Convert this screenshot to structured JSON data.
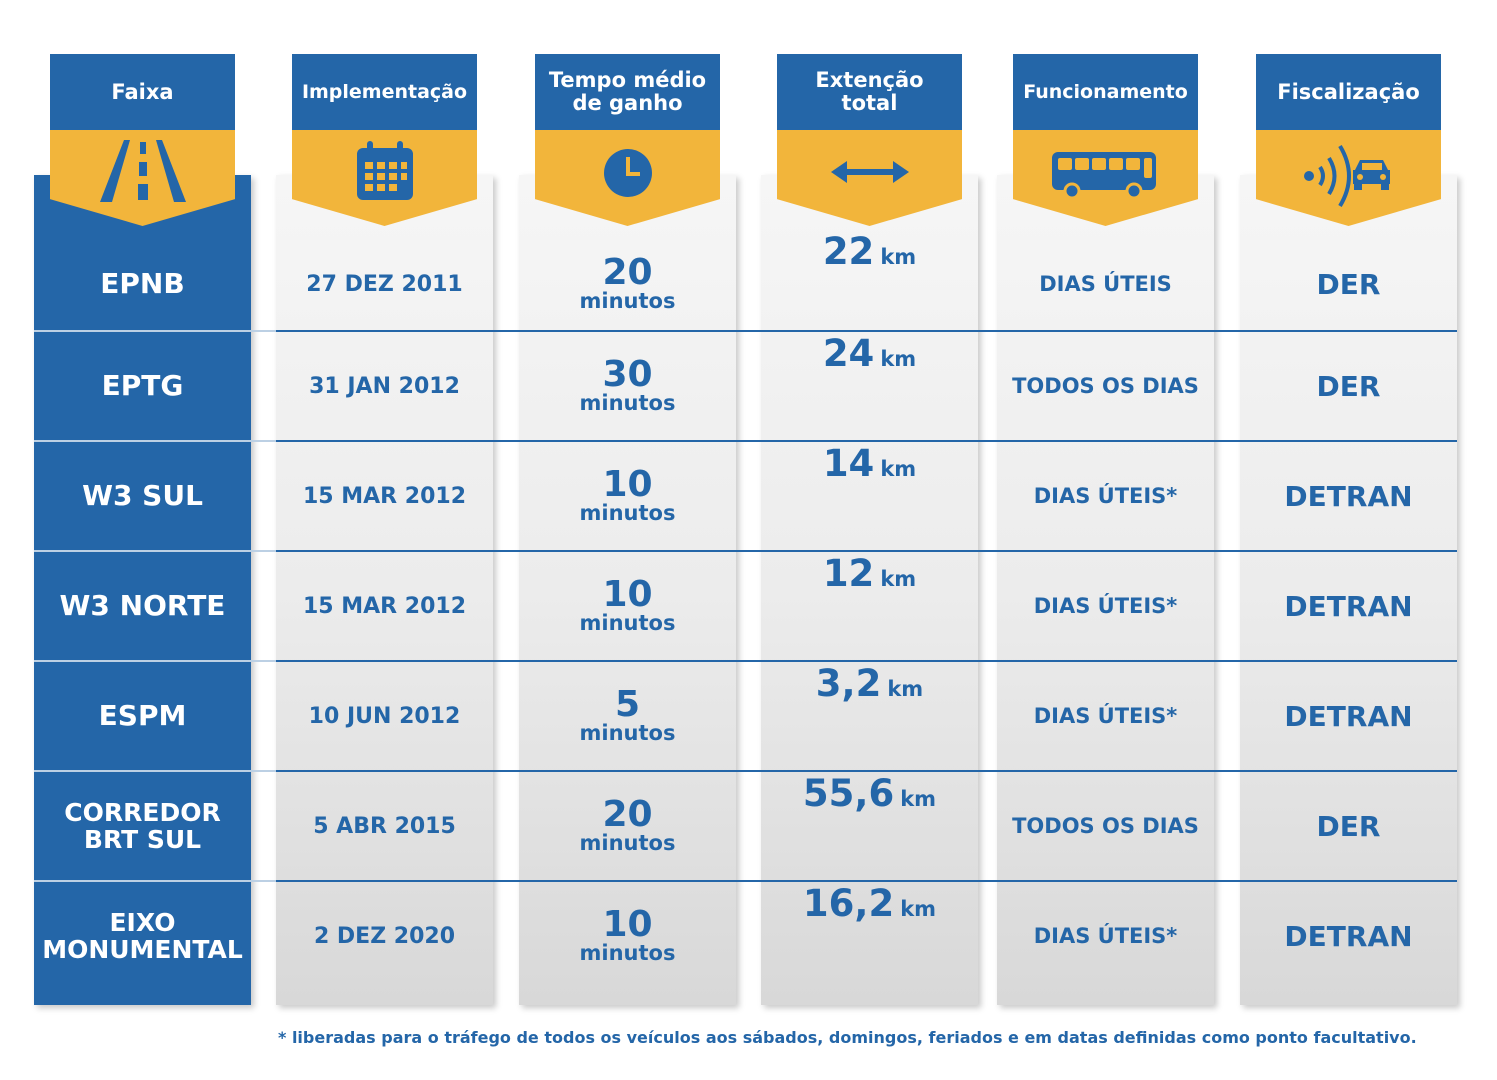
{
  "headers": {
    "faixa": "Faixa",
    "implementacao": "Implementação",
    "tempo": "Tempo médio\nde ganho",
    "extencao": "Extenção\ntotal",
    "funcionamento": "Funcionamento",
    "fiscalizacao": "Fiscalização"
  },
  "icons": [
    "road-icon",
    "calendar-icon",
    "clock-icon",
    "double-arrow-icon",
    "bus-icon",
    "radar-car-icon"
  ],
  "colors": {
    "blue": "#2466a8",
    "yellow": "#f2b53b",
    "grey": "#e6e6e6"
  },
  "rows": [
    {
      "faixa": "EPNB",
      "implementacao": "27 DEZ 2011",
      "tempo": "20",
      "tempo_unit": "minutos",
      "extencao": "22",
      "ext_unit": "km",
      "funcionamento": "DIAS ÚTEIS",
      "fiscalizacao": "DER"
    },
    {
      "faixa": "EPTG",
      "implementacao": "31 JAN 2012",
      "tempo": "30",
      "tempo_unit": "minutos",
      "extencao": "24",
      "ext_unit": "km",
      "funcionamento": "TODOS OS DIAS",
      "fiscalizacao": "DER"
    },
    {
      "faixa": "W3 SUL",
      "implementacao": "15 MAR 2012",
      "tempo": "10",
      "tempo_unit": "minutos",
      "extencao": "14",
      "ext_unit": "km",
      "funcionamento": "DIAS ÚTEIS*",
      "fiscalizacao": "DETRAN"
    },
    {
      "faixa": "W3 NORTE",
      "implementacao": "15 MAR 2012",
      "tempo": "10",
      "tempo_unit": "minutos",
      "extencao": "12",
      "ext_unit": "km",
      "funcionamento": "DIAS ÚTEIS*",
      "fiscalizacao": "DETRAN"
    },
    {
      "faixa": "ESPM",
      "implementacao": "10 JUN 2012",
      "tempo": "5",
      "tempo_unit": "minutos",
      "extencao": "3,2",
      "ext_unit": "km",
      "funcionamento": "DIAS ÚTEIS*",
      "fiscalizacao": "DETRAN"
    },
    {
      "faixa": "CORREDOR\nBRT SUL",
      "implementacao": "5 ABR 2015",
      "tempo": "20",
      "tempo_unit": "minutos",
      "extencao": "55,6",
      "ext_unit": "km",
      "funcionamento": "TODOS OS DIAS",
      "fiscalizacao": "DER"
    },
    {
      "faixa": "EIXO\nMONUMENTAL",
      "implementacao": "2 DEZ 2020",
      "tempo": "10",
      "tempo_unit": "minutos",
      "extencao": "16,2",
      "ext_unit": "km",
      "funcionamento": "DIAS ÚTEIS*",
      "fiscalizacao": "DETRAN"
    }
  ],
  "footnote": "* liberadas para o tráfego de todos os veículos aos sábados, domingos, feriados e em datas definidas como ponto facultativo."
}
